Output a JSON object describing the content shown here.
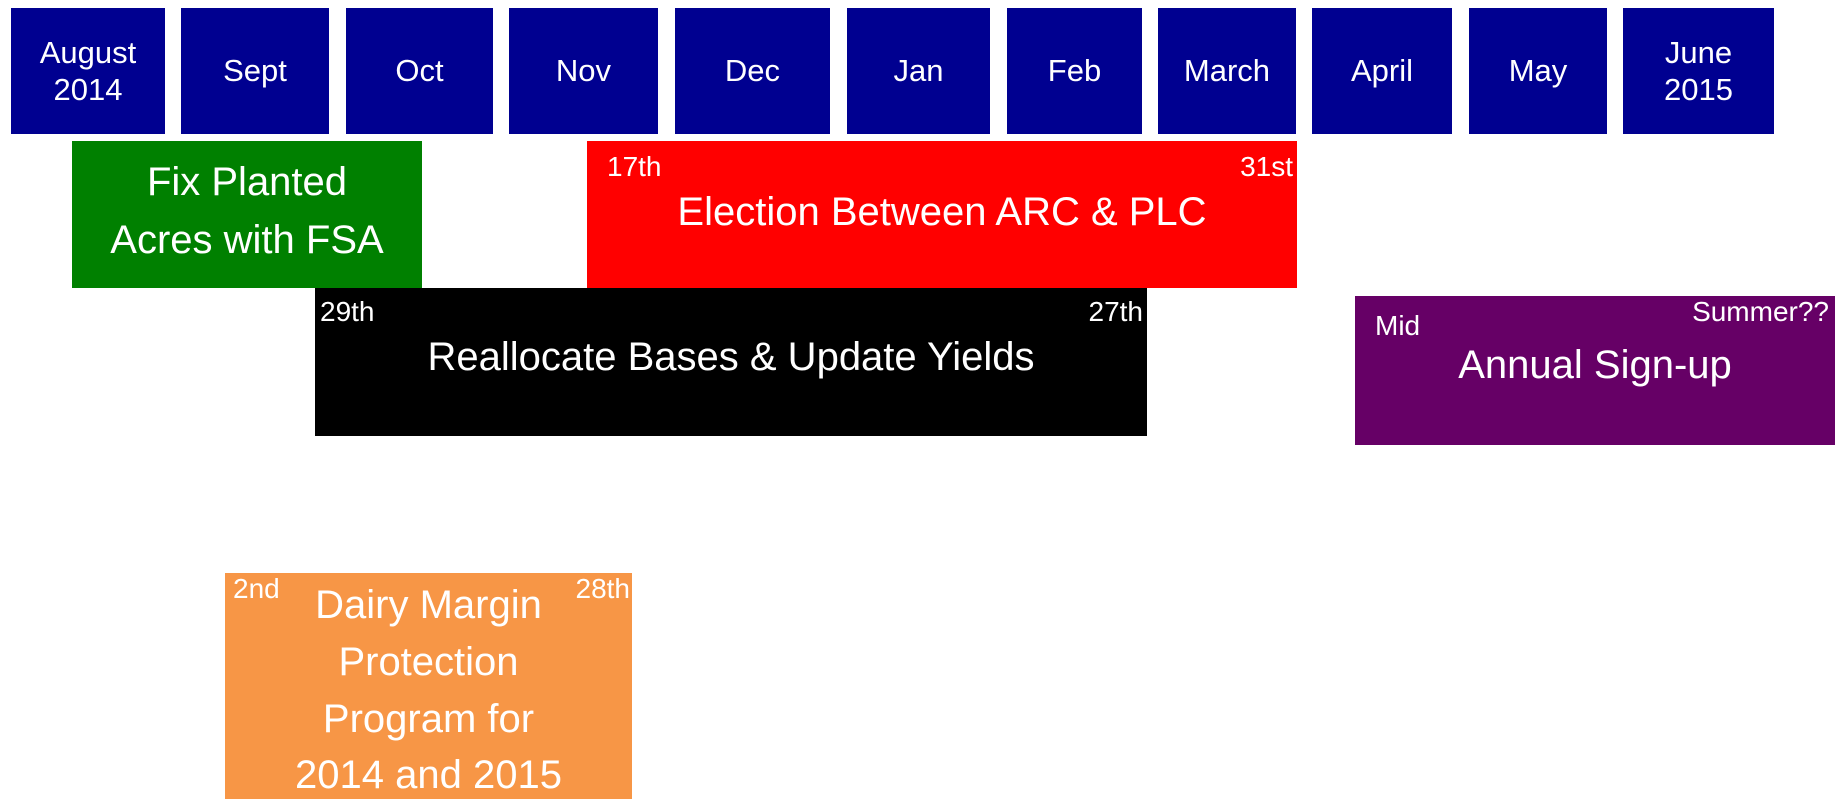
{
  "months": [
    {
      "lines": [
        "August",
        "2014"
      ]
    },
    {
      "lines": [
        "Sept"
      ]
    },
    {
      "lines": [
        "Oct"
      ]
    },
    {
      "lines": [
        "Nov"
      ]
    },
    {
      "lines": [
        "Dec"
      ]
    },
    {
      "lines": [
        "Jan"
      ]
    },
    {
      "lines": [
        "Feb"
      ]
    },
    {
      "lines": [
        "March"
      ]
    },
    {
      "lines": [
        "April"
      ]
    },
    {
      "lines": [
        "May"
      ]
    },
    {
      "lines": [
        "June",
        "2015"
      ]
    }
  ],
  "bars": [
    {
      "lines": [
        "Fix Planted",
        "Acres with FSA"
      ]
    },
    {
      "start": "17th",
      "end": "31st",
      "label": "Election Between ARC & PLC"
    },
    {
      "start": "29th",
      "end": "27th",
      "label": "Reallocate Bases & Update Yields"
    },
    {
      "start": "Mid",
      "end": "Summer??",
      "label": "Annual Sign-up"
    },
    {
      "start": "2nd",
      "end": "28th",
      "label": "Dairy Margin Protection Program for 2014 and 2015"
    }
  ]
}
